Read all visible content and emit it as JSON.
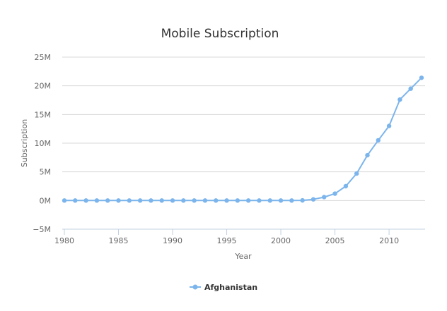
{
  "chart_data": {
    "type": "line",
    "title": "Mobile Subscription",
    "xlabel": "Year",
    "ylabel": "Subscription",
    "xlim": [
      1980,
      2013
    ],
    "ylim": [
      -5000000,
      25000000
    ],
    "x_ticks": [
      1980,
      1985,
      1990,
      1995,
      2000,
      2005,
      2010
    ],
    "x_tick_labels": [
      "1980",
      "1985",
      "1990",
      "1995",
      "2000",
      "2005",
      "2010"
    ],
    "y_ticks": [
      -5000000,
      0,
      5000000,
      10000000,
      15000000,
      20000000,
      25000000
    ],
    "y_tick_labels": [
      "−5M",
      "0M",
      "5M",
      "10M",
      "15M",
      "20M",
      "25M"
    ],
    "grid": true,
    "legend_position": "bottom-center",
    "x": [
      1980,
      1981,
      1982,
      1983,
      1984,
      1985,
      1986,
      1987,
      1988,
      1989,
      1990,
      1991,
      1992,
      1993,
      1994,
      1995,
      1996,
      1997,
      1998,
      1999,
      2000,
      2001,
      2002,
      2003,
      2004,
      2005,
      2006,
      2007,
      2008,
      2009,
      2010,
      2011,
      2012,
      2013
    ],
    "series": [
      {
        "name": "Afghanistan",
        "color": "#7cb5ec",
        "values": [
          0,
          0,
          0,
          0,
          0,
          0,
          0,
          0,
          0,
          0,
          0,
          0,
          0,
          0,
          0,
          0,
          0,
          0,
          0,
          0,
          0,
          0,
          25000,
          200000,
          600000,
          1200000,
          2500000,
          4700000,
          7900000,
          10500000,
          13000000,
          17600000,
          19500000,
          21400000
        ]
      }
    ]
  }
}
